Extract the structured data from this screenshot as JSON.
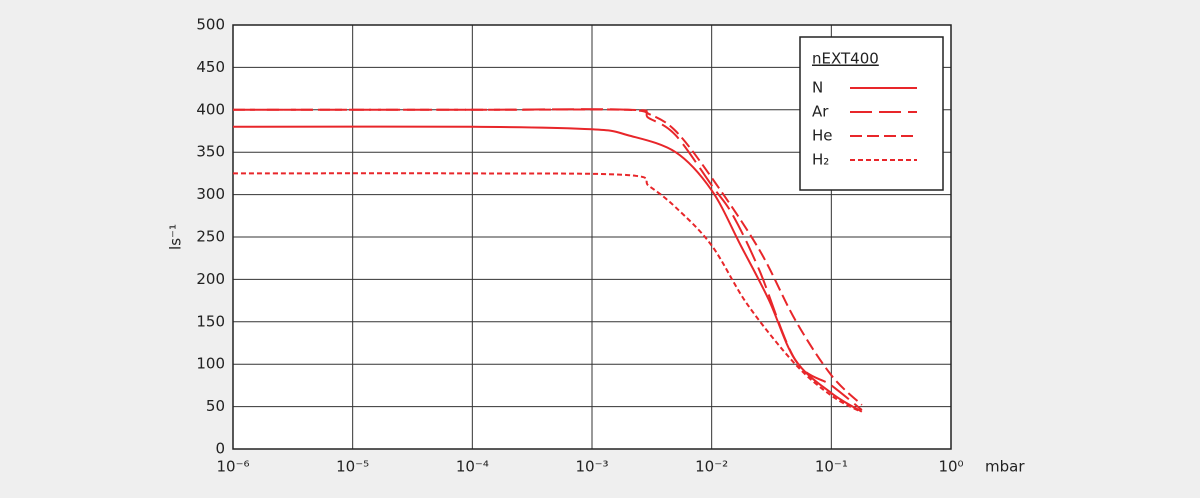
{
  "chart_data": {
    "type": "line",
    "x_label": "mbar",
    "y_label": "ls⁻¹",
    "legend_title": "nEXT400",
    "log_x": true,
    "grid": true,
    "legend": "top-right",
    "xlim": [
      1e-06,
      1
    ],
    "ylim": [
      0,
      500
    ],
    "xticks": [
      {
        "value": 1e-06,
        "label": "10⁻⁶"
      },
      {
        "value": 1e-05,
        "label": "10⁻⁵"
      },
      {
        "value": 0.0001,
        "label": "10⁻⁴"
      },
      {
        "value": 0.001,
        "label": "10⁻³"
      },
      {
        "value": 0.01,
        "label": "10⁻²"
      },
      {
        "value": 0.1,
        "label": "10⁻¹"
      },
      {
        "value": 1,
        "label": "10⁰"
      }
    ],
    "yticks": [
      0,
      50,
      100,
      150,
      200,
      250,
      300,
      350,
      400,
      450,
      500
    ],
    "series": [
      {
        "name": "N",
        "color": "#e8262a",
        "style": "solid",
        "x": [
          1e-06,
          0.0001,
          0.001,
          0.002,
          0.005,
          0.01,
          0.0175,
          0.03,
          0.05,
          0.1,
          0.18
        ],
        "values": [
          380,
          380,
          377,
          370,
          350,
          305,
          240,
          176,
          105,
          66,
          44
        ]
      },
      {
        "name": "Ar",
        "color": "#e8262a",
        "style": "long-dash",
        "x": [
          1e-06,
          0.0001,
          0.002,
          0.003,
          0.005,
          0.01,
          0.015,
          0.025,
          0.05,
          0.1,
          0.18
        ],
        "values": [
          400,
          400,
          400,
          390,
          370,
          311,
          276,
          211,
          105,
          75,
          46
        ]
      },
      {
        "name": "He",
        "color": "#e8262a",
        "style": "dash",
        "x": [
          1e-06,
          0.0001,
          0.002,
          0.003,
          0.005,
          0.01,
          0.025,
          0.05,
          0.1,
          0.18
        ],
        "values": [
          400,
          400,
          400,
          395,
          375,
          320,
          235,
          152,
          87,
          52
        ]
      },
      {
        "name": "H₂",
        "color": "#e8262a",
        "style": "short-dash",
        "x": [
          1e-06,
          0.0001,
          0.002,
          0.003,
          0.005,
          0.01,
          0.02,
          0.05,
          0.1,
          0.17
        ],
        "values": [
          325,
          325,
          323,
          310,
          285,
          240,
          170,
          100,
          63,
          45
        ]
      }
    ]
  }
}
